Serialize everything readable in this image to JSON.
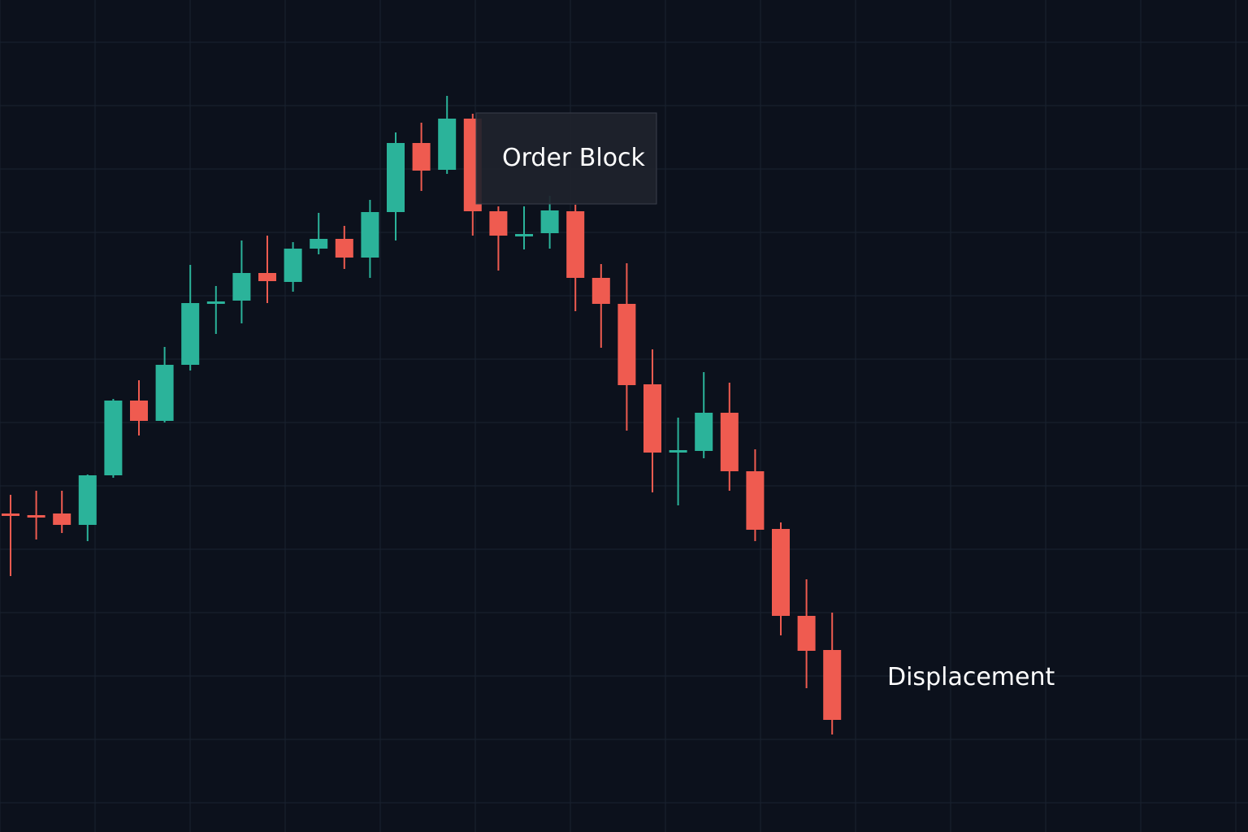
{
  "chart_data": {
    "type": "candlestick",
    "title": "",
    "xlabel": "",
    "ylabel": "",
    "grid": true,
    "ylim": [
      0,
      1024
    ],
    "colors": {
      "background": "#0c111c",
      "grid": "#1a2230",
      "bullish": "#2bb39a",
      "bearish": "#ef5b50",
      "annotation_box": "#1f232d",
      "annotation_border": "#3a3f4b",
      "text": "#ffffff"
    },
    "candles": [
      {
        "o": 392,
        "h": 415,
        "l": 315,
        "c": 390
      },
      {
        "o": 390,
        "h": 420,
        "l": 360,
        "c": 389
      },
      {
        "o": 392,
        "h": 420,
        "l": 368,
        "c": 378
      },
      {
        "o": 378,
        "h": 440,
        "l": 358,
        "c": 439
      },
      {
        "o": 439,
        "h": 533,
        "l": 436,
        "c": 531
      },
      {
        "o": 531,
        "h": 556,
        "l": 488,
        "c": 506
      },
      {
        "o": 506,
        "h": 597,
        "l": 504,
        "c": 575
      },
      {
        "o": 575,
        "h": 698,
        "l": 568,
        "c": 651
      },
      {
        "o": 652,
        "h": 672,
        "l": 613,
        "c": 653
      },
      {
        "o": 654,
        "h": 728,
        "l": 626,
        "c": 688
      },
      {
        "o": 688,
        "h": 734,
        "l": 651,
        "c": 678
      },
      {
        "o": 677,
        "h": 726,
        "l": 665,
        "c": 718
      },
      {
        "o": 718,
        "h": 762,
        "l": 711,
        "c": 730
      },
      {
        "o": 730,
        "h": 746,
        "l": 693,
        "c": 707
      },
      {
        "o": 707,
        "h": 778,
        "l": 682,
        "c": 763
      },
      {
        "o": 763,
        "h": 861,
        "l": 728,
        "c": 848
      },
      {
        "o": 848,
        "h": 873,
        "l": 789,
        "c": 814
      },
      {
        "o": 815,
        "h": 906,
        "l": 810,
        "c": 878
      },
      {
        "o": 878,
        "h": 884,
        "l": 734,
        "c": 764
      },
      {
        "o": 764,
        "h": 770,
        "l": 691,
        "c": 734
      },
      {
        "o": 735,
        "h": 770,
        "l": 717,
        "c": 736
      },
      {
        "o": 737,
        "h": 783,
        "l": 718,
        "c": 765
      },
      {
        "o": 764,
        "h": 772,
        "l": 641,
        "c": 682
      },
      {
        "o": 682,
        "h": 699,
        "l": 596,
        "c": 650
      },
      {
        "o": 650,
        "h": 700,
        "l": 494,
        "c": 550
      },
      {
        "o": 551,
        "h": 594,
        "l": 418,
        "c": 467
      },
      {
        "o": 469,
        "h": 510,
        "l": 402,
        "c": 470
      },
      {
        "o": 469,
        "h": 566,
        "l": 460,
        "c": 516
      },
      {
        "o": 516,
        "h": 553,
        "l": 420,
        "c": 444
      },
      {
        "o": 444,
        "h": 471,
        "l": 358,
        "c": 372
      },
      {
        "o": 373,
        "h": 381,
        "l": 242,
        "c": 266
      },
      {
        "o": 266,
        "h": 311,
        "l": 177,
        "c": 223
      },
      {
        "o": 224,
        "h": 270,
        "l": 120,
        "c": 138
      }
    ],
    "annotations": [
      {
        "label": "Order Block",
        "candle": 18,
        "boxed": true
      },
      {
        "label": "Displacement",
        "candle": 32,
        "boxed": false
      }
    ]
  }
}
